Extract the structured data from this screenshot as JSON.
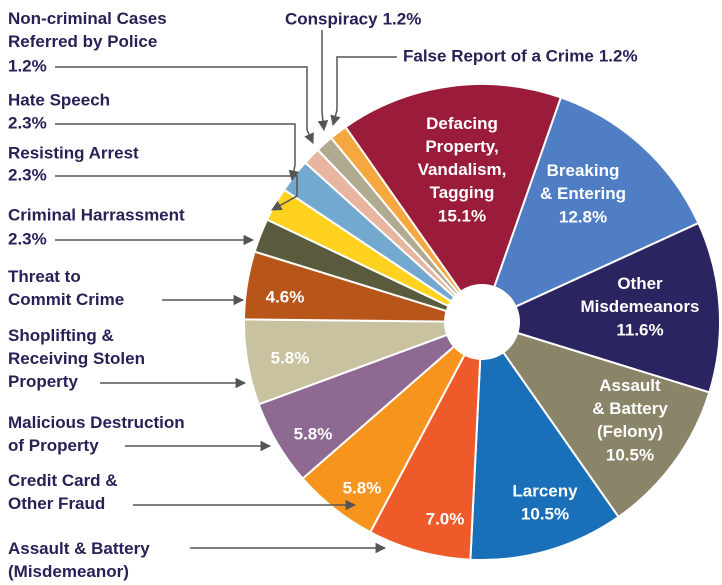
{
  "chart_data": {
    "type": "donut",
    "categories": [
      "Defacing\nProperty,\nVandalism,\nTagging",
      "Breaking\n& Entering",
      "Other\nMisdemeanors",
      "Assault\n& Battery\n(Felony)",
      "Larceny",
      "Assault & Battery\n(Misdemeanor)",
      "Credit Card &\nOther Fraud",
      "Malicious Destruction\nof Property",
      "Shoplifting &\nReceiving Stolen\nProperty",
      "Threat to\nCommit Crime",
      "Criminal Harrassment",
      "Resisting Arrest",
      "Hate Speech",
      "Non-criminal Cases\nReferred by Police",
      "Conspiracy",
      "False Report of a Crime"
    ],
    "values": [
      15.1,
      12.8,
      11.6,
      10.5,
      10.5,
      7,
      5.8,
      5.8,
      5.8,
      4.6,
      2.3,
      2.3,
      2.3,
      1.2,
      1.2,
      1.2
    ],
    "value_labels": [
      "15.1%",
      "12.8%",
      "11.6%",
      "10.5%",
      "10.5%",
      "7.0%",
      "5.8%",
      "5.8%",
      "5.8%",
      "4.6%",
      "2.3%",
      "2.3%",
      "2.3%",
      "1.2%",
      "1.2%",
      "1.2%"
    ],
    "colors": [
      "#9b1b3a",
      "#4f7ec4",
      "#2a2560",
      "#8a8468",
      "#1a70b8",
      "#ee5a2a",
      "#f7941d",
      "#8e6a93",
      "#c9c2a0",
      "#b8561a",
      "#5a5a3c",
      "#ffd21f",
      "#74a9cf",
      "#e8b5a0",
      "#b0aa90",
      "#f5a840"
    ]
  }
}
